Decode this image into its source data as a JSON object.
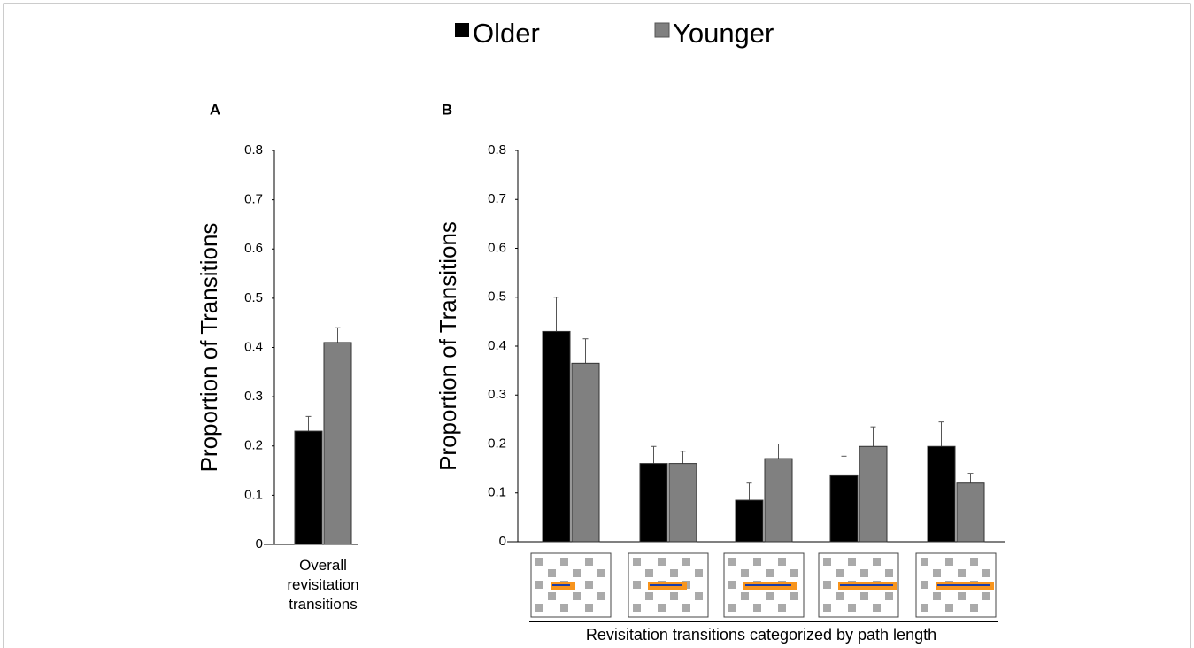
{
  "chart_data": [
    {
      "type": "bar",
      "title": "A",
      "ylabel": "Proportion of Transitions",
      "categories": [
        "Overall revisitation transitions"
      ],
      "series": [
        {
          "name": "Older",
          "color": "#000000",
          "values": [
            0.23
          ],
          "errors": [
            0.03
          ]
        },
        {
          "name": "Younger",
          "color": "#808080",
          "values": [
            0.41
          ],
          "errors": [
            0.03
          ]
        }
      ],
      "ylim": [
        0,
        0.8
      ],
      "yticks": [
        0,
        0.1,
        0.2,
        0.3,
        0.4,
        0.5,
        0.6,
        0.7,
        0.8
      ]
    },
    {
      "type": "bar",
      "title": "B",
      "ylabel": "Proportion of Transitions",
      "xlabel": "Revisitation transitions categorized by path length",
      "categories": [
        null,
        null,
        null,
        null,
        null
      ],
      "series": [
        {
          "color": "#000000",
          "values": [
            0.43,
            0.16,
            0.085,
            0.135,
            0.195
          ],
          "errors": [
            0.07,
            0.035,
            0.035,
            0.04,
            0.05
          ]
        },
        {
          "color": "#808080",
          "values": [
            0.365,
            0.16,
            0.17,
            0.195,
            0.12
          ],
          "errors": [
            0.05,
            0.025,
            0.03,
            0.04,
            0.02
          ]
        }
      ],
      "ylim": [
        0,
        0.8
      ],
      "yticks": [
        0,
        0.1,
        0.2,
        0.3,
        0.4,
        0.5,
        0.6,
        0.7,
        0.8
      ]
    }
  ]
}
